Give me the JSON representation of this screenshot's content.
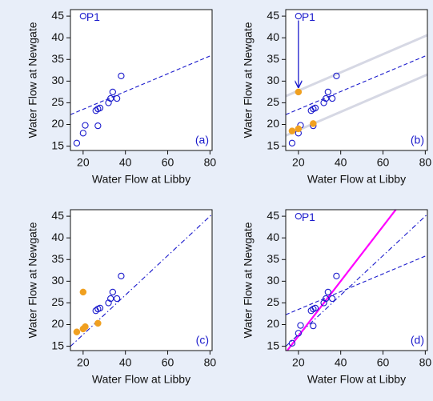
{
  "chart_data": [
    {
      "type": "scatter",
      "panel_label": "(a)",
      "x_label": "Water Flow at Libby",
      "y_label": "Water Flow at Newgate",
      "xlim": [
        14,
        81
      ],
      "ylim": [
        14,
        46.5
      ],
      "xticks": [
        20,
        40,
        60,
        80
      ],
      "yticks": [
        15,
        20,
        25,
        30,
        35,
        40,
        45
      ],
      "series": [
        {
          "color": "#1a1acc",
          "filled": false,
          "x": [
            17,
            20,
            21,
            26,
            27,
            27,
            28,
            32,
            33,
            34,
            36,
            38,
            20
          ],
          "y": [
            15.7,
            18,
            19.8,
            23.2,
            23.6,
            19.7,
            23.8,
            25,
            26,
            27.5,
            26,
            31.2,
            45
          ]
        }
      ],
      "lines": [
        {
          "slope": 0.205,
          "intercept": 19.4,
          "color": "#1a1acc",
          "dash": "dashed"
        }
      ],
      "arrows": [],
      "annotations": [
        {
          "text": "P1",
          "x": 20,
          "y": 45
        }
      ]
    },
    {
      "type": "scatter",
      "panel_label": "(b)",
      "x_label": "Water Flow at Libby",
      "y_label": "Water Flow at Newgate",
      "xlim": [
        14,
        81
      ],
      "ylim": [
        14,
        46.5
      ],
      "xticks": [
        20,
        40,
        60,
        80
      ],
      "yticks": [
        15,
        20,
        25,
        30,
        35,
        40,
        45
      ],
      "series": [
        {
          "color": "#1a1acc",
          "filled": false,
          "x": [
            17,
            20,
            21,
            26,
            27,
            27,
            28,
            32,
            33,
            34,
            36,
            38,
            20
          ],
          "y": [
            15.7,
            18,
            19.8,
            23.2,
            23.6,
            19.7,
            23.8,
            25,
            26,
            27.5,
            26,
            31.2,
            45
          ]
        },
        {
          "color": "#f0a020",
          "filled": true,
          "x": [
            20,
            17,
            20,
            27
          ],
          "y": [
            27.5,
            18.5,
            19,
            20.2
          ]
        }
      ],
      "lines": [
        {
          "slope": 0.21,
          "intercept": 23.6,
          "color": "#d6d8e4",
          "dash": "solid"
        },
        {
          "slope": 0.21,
          "intercept": 14.5,
          "color": "#d6d8e4",
          "dash": "solid"
        },
        {
          "slope": 0.205,
          "intercept": 19.4,
          "color": "#1a1acc",
          "dash": "dashed"
        }
      ],
      "arrows": [
        {
          "x": 20,
          "y_from": 44,
          "y_to": 28.6
        }
      ],
      "annotations": [
        {
          "text": "P1",
          "x": 20,
          "y": 45
        }
      ]
    },
    {
      "type": "scatter",
      "panel_label": "(c)",
      "x_label": "Water Flow at Libby",
      "y_label": "Water Flow at Newgate",
      "xlim": [
        14,
        81
      ],
      "ylim": [
        14,
        46.5
      ],
      "xticks": [
        20,
        40,
        60,
        80
      ],
      "yticks": [
        15,
        20,
        25,
        30,
        35,
        40,
        45
      ],
      "series": [
        {
          "color": "#1a1acc",
          "filled": false,
          "x": [
            26,
            27,
            28,
            32,
            33,
            34,
            36,
            38
          ],
          "y": [
            23.2,
            23.6,
            23.8,
            25,
            26,
            27.5,
            26,
            31.2
          ]
        },
        {
          "color": "#f0a020",
          "filled": true,
          "x": [
            20,
            17,
            20,
            21,
            27
          ],
          "y": [
            27.5,
            18.3,
            19,
            19.5,
            20.3
          ]
        }
      ],
      "lines": [
        {
          "slope": 0.455,
          "intercept": 8.6,
          "color": "#1a1acc",
          "dash": "dashdot"
        }
      ],
      "arrows": [],
      "annotations": []
    },
    {
      "type": "scatter",
      "panel_label": "(d)",
      "x_label": "Water Flow at Libby",
      "y_label": "Water Flow at Newgate",
      "xlim": [
        14,
        81
      ],
      "ylim": [
        14,
        46.5
      ],
      "xticks": [
        20,
        40,
        60,
        80
      ],
      "yticks": [
        15,
        20,
        25,
        30,
        35,
        40,
        45
      ],
      "series": [
        {
          "color": "#1a1acc",
          "filled": false,
          "x": [
            17,
            20,
            21,
            26,
            27,
            27,
            28,
            32,
            33,
            34,
            36,
            38,
            20
          ],
          "y": [
            15.7,
            18,
            19.8,
            23.2,
            23.6,
            19.7,
            23.8,
            25,
            26,
            27.5,
            26,
            31.2,
            45
          ]
        }
      ],
      "lines": [
        {
          "slope": 0.205,
          "intercept": 19.4,
          "color": "#1a1acc",
          "dash": "dashed"
        },
        {
          "slope": 0.455,
          "intercept": 8.6,
          "color": "#1a1acc",
          "dash": "dashdot"
        },
        {
          "slope": 0.633,
          "intercept": 4.7,
          "color": "#ff00ff",
          "dash": "solid"
        }
      ],
      "arrows": [],
      "annotations": [
        {
          "text": "P1",
          "x": 20,
          "y": 45
        }
      ]
    }
  ]
}
